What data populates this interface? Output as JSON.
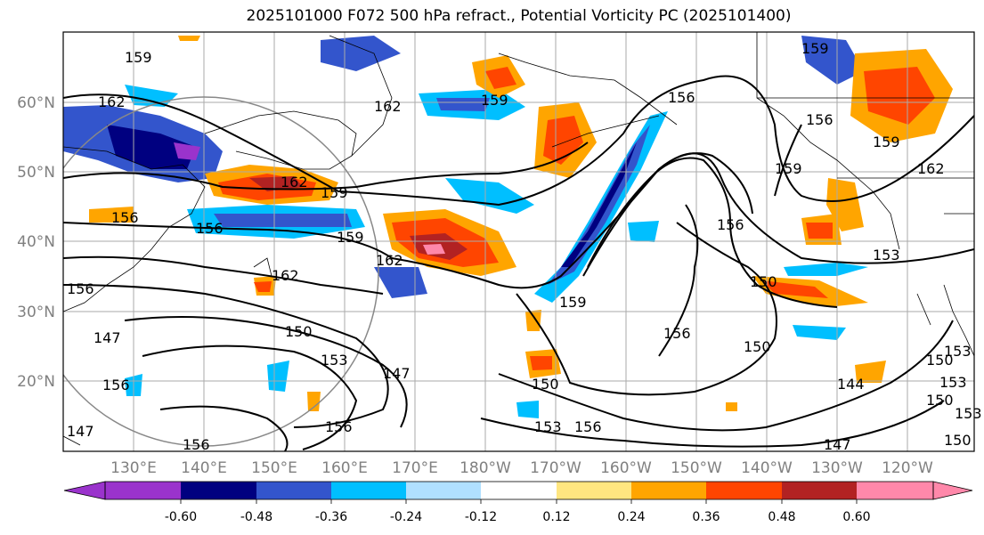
{
  "title": "2025101000 F072 500 hPa refract., Potential Vorticity PC (2025101400)",
  "map": {
    "lat_labels": [
      "60°N",
      "50°N",
      "40°N",
      "30°N",
      "20°N"
    ],
    "lon_labels": [
      "130°E",
      "140°E",
      "150°E",
      "160°E",
      "170°E",
      "180°W",
      "170°W",
      "160°W",
      "150°W",
      "140°W",
      "130°W",
      "120°W"
    ],
    "contour_labels": [
      "159",
      "162",
      "162",
      "159",
      "162",
      "159",
      "156",
      "159",
      "156",
      "162",
      "162",
      "159",
      "156",
      "150",
      "153",
      "147",
      "150",
      "156",
      "150",
      "147",
      "153",
      "156",
      "153",
      "156",
      "150",
      "156",
      "153",
      "144",
      "150",
      "153",
      "153",
      "147",
      "159",
      "156",
      "156",
      "159",
      "162",
      "156",
      "159",
      "147",
      "156",
      "150",
      "150"
    ]
  },
  "colorbar": {
    "tick_labels": [
      "-0.60",
      "-0.48",
      "-0.36",
      "-0.24",
      "-0.12",
      "0.12",
      "0.24",
      "0.36",
      "0.48",
      "0.60"
    ],
    "colors": [
      "#9a33cc",
      "#000080",
      "#3355cc",
      "#00bfff",
      "#b0e0ff",
      "#ffffff",
      "#ffe680",
      "#ffa500",
      "#ff4500",
      "#b22222",
      "#ff88aa"
    ]
  }
}
